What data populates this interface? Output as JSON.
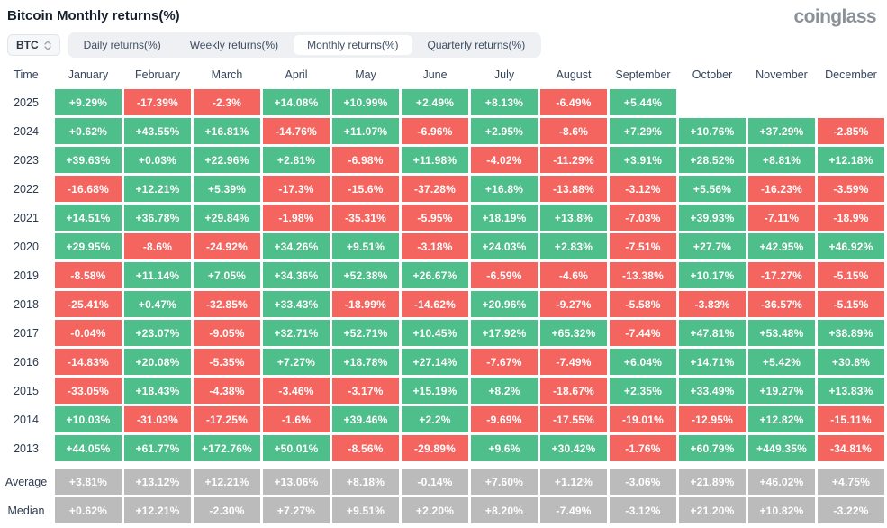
{
  "page": {
    "title": "Bitcoin Monthly returns(%)",
    "logo": "coinglass"
  },
  "controls": {
    "symbol_select": {
      "value": "BTC"
    },
    "tabs": [
      {
        "label": "Daily returns(%)",
        "active": false
      },
      {
        "label": "Weekly returns(%)",
        "active": false
      },
      {
        "label": "Monthly returns(%)",
        "active": true
      },
      {
        "label": "Quarterly returns(%)",
        "active": false
      }
    ]
  },
  "colors": {
    "positive": "#4ebe8b",
    "negative": "#f4655f",
    "neutral": "#bbbbbb"
  },
  "chart_data": {
    "type": "table",
    "columns": [
      "Time",
      "January",
      "February",
      "March",
      "April",
      "May",
      "June",
      "July",
      "August",
      "September",
      "October",
      "November",
      "December"
    ],
    "rows": [
      {
        "label": "2025",
        "neutral": false,
        "values": [
          "+9.29%",
          "-17.39%",
          "-2.3%",
          "+14.08%",
          "+10.99%",
          "+2.49%",
          "+8.13%",
          "-6.49%",
          "+5.44%",
          "",
          "",
          ""
        ]
      },
      {
        "label": "2024",
        "neutral": false,
        "values": [
          "+0.62%",
          "+43.55%",
          "+16.81%",
          "-14.76%",
          "+11.07%",
          "-6.96%",
          "+2.95%",
          "-8.6%",
          "+7.29%",
          "+10.76%",
          "+37.29%",
          "-2.85%"
        ]
      },
      {
        "label": "2023",
        "neutral": false,
        "values": [
          "+39.63%",
          "+0.03%",
          "+22.96%",
          "+2.81%",
          "-6.98%",
          "+11.98%",
          "-4.02%",
          "-11.29%",
          "+3.91%",
          "+28.52%",
          "+8.81%",
          "+12.18%"
        ]
      },
      {
        "label": "2022",
        "neutral": false,
        "values": [
          "-16.68%",
          "+12.21%",
          "+5.39%",
          "-17.3%",
          "-15.6%",
          "-37.28%",
          "+16.8%",
          "-13.88%",
          "-3.12%",
          "+5.56%",
          "-16.23%",
          "-3.59%"
        ]
      },
      {
        "label": "2021",
        "neutral": false,
        "values": [
          "+14.51%",
          "+36.78%",
          "+29.84%",
          "-1.98%",
          "-35.31%",
          "-5.95%",
          "+18.19%",
          "+13.8%",
          "-7.03%",
          "+39.93%",
          "-7.11%",
          "-18.9%"
        ]
      },
      {
        "label": "2020",
        "neutral": false,
        "values": [
          "+29.95%",
          "-8.6%",
          "-24.92%",
          "+34.26%",
          "+9.51%",
          "-3.18%",
          "+24.03%",
          "+2.83%",
          "-7.51%",
          "+27.7%",
          "+42.95%",
          "+46.92%"
        ]
      },
      {
        "label": "2019",
        "neutral": false,
        "values": [
          "-8.58%",
          "+11.14%",
          "+7.05%",
          "+34.36%",
          "+52.38%",
          "+26.67%",
          "-6.59%",
          "-4.6%",
          "-13.38%",
          "+10.17%",
          "-17.27%",
          "-5.15%"
        ]
      },
      {
        "label": "2018",
        "neutral": false,
        "values": [
          "-25.41%",
          "+0.47%",
          "-32.85%",
          "+33.43%",
          "-18.99%",
          "-14.62%",
          "+20.96%",
          "-9.27%",
          "-5.58%",
          "-3.83%",
          "-36.57%",
          "-5.15%"
        ]
      },
      {
        "label": "2017",
        "neutral": false,
        "values": [
          "-0.04%",
          "+23.07%",
          "-9.05%",
          "+32.71%",
          "+52.71%",
          "+10.45%",
          "+17.92%",
          "+65.32%",
          "-7.44%",
          "+47.81%",
          "+53.48%",
          "+38.89%"
        ]
      },
      {
        "label": "2016",
        "neutral": false,
        "values": [
          "-14.83%",
          "+20.08%",
          "-5.35%",
          "+7.27%",
          "+18.78%",
          "+27.14%",
          "-7.67%",
          "-7.49%",
          "+6.04%",
          "+14.71%",
          "+5.42%",
          "+30.8%"
        ]
      },
      {
        "label": "2015",
        "neutral": false,
        "values": [
          "-33.05%",
          "+18.43%",
          "-4.38%",
          "-3.46%",
          "-3.17%",
          "+15.19%",
          "+8.2%",
          "-18.67%",
          "+2.35%",
          "+33.49%",
          "+19.27%",
          "+13.83%"
        ]
      },
      {
        "label": "2014",
        "neutral": false,
        "values": [
          "+10.03%",
          "-31.03%",
          "-17.25%",
          "-1.6%",
          "+39.46%",
          "+2.2%",
          "-9.69%",
          "-17.55%",
          "-19.01%",
          "-12.95%",
          "+12.82%",
          "-15.11%"
        ]
      },
      {
        "label": "2013",
        "neutral": false,
        "values": [
          "+44.05%",
          "+61.77%",
          "+172.76%",
          "+50.01%",
          "-8.56%",
          "-29.89%",
          "+9.6%",
          "+30.42%",
          "-1.76%",
          "+60.79%",
          "+449.35%",
          "-34.81%"
        ]
      },
      {
        "label": "Average",
        "neutral": true,
        "values": [
          "+3.81%",
          "+13.12%",
          "+12.21%",
          "+13.06%",
          "+8.18%",
          "-0.14%",
          "+7.60%",
          "+1.12%",
          "-3.06%",
          "+21.89%",
          "+46.02%",
          "+4.75%"
        ]
      },
      {
        "label": "Median",
        "neutral": true,
        "values": [
          "+0.62%",
          "+12.21%",
          "-2.30%",
          "+7.27%",
          "+9.51%",
          "+2.20%",
          "+8.20%",
          "-7.49%",
          "-3.12%",
          "+21.20%",
          "+10.82%",
          "-3.22%"
        ]
      }
    ]
  }
}
